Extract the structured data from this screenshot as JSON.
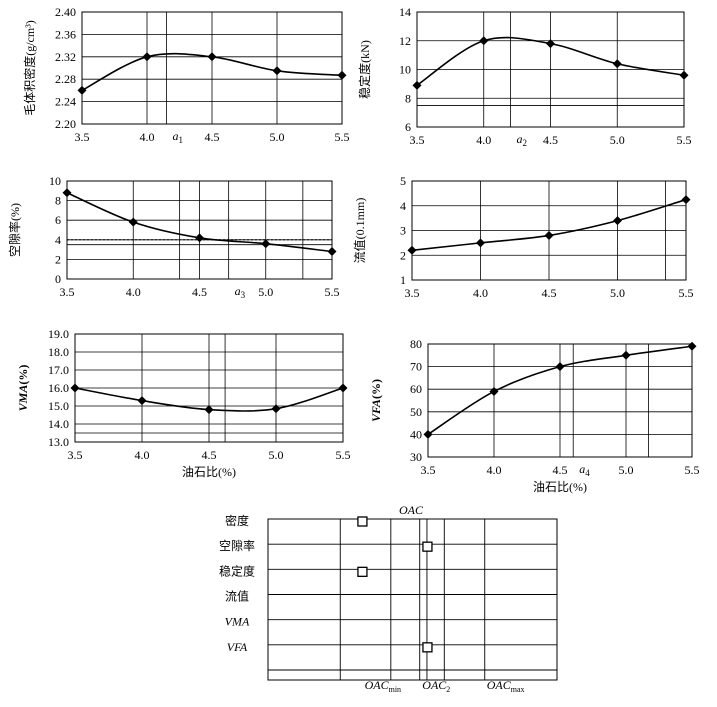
{
  "chart_data": [
    {
      "id": "density",
      "type": "line",
      "x": [
        3.5,
        4.0,
        4.5,
        5.0,
        5.5
      ],
      "values": [
        2.26,
        2.32,
        2.32,
        2.295,
        2.287
      ],
      "xlim": [
        3.5,
        5.5
      ],
      "ylim": [
        2.2,
        2.4
      ],
      "yticks": [
        "2.20",
        "2.24",
        "2.28",
        "2.32",
        "2.36",
        "2.40"
      ],
      "xticks": [
        "3.5",
        "4.0",
        "4.5",
        "5.0",
        "5.5"
      ],
      "ylabel": "毛体积密度(g/cm³)",
      "xlabel": "",
      "marker_label": "a",
      "marker_sub": "1",
      "marker_x": 4.15,
      "extra_vlines": [
        4.15
      ],
      "extra_hlines": [],
      "grid": true
    },
    {
      "id": "stability",
      "type": "line",
      "x": [
        3.5,
        4.0,
        4.5,
        5.0,
        5.5
      ],
      "values": [
        8.9,
        12.0,
        11.8,
        10.4,
        9.6
      ],
      "xlim": [
        3.5,
        5.5
      ],
      "ylim": [
        6,
        14
      ],
      "yticks": [
        "6",
        "8",
        "10",
        "12",
        "14"
      ],
      "xticks": [
        "3.5",
        "4.0",
        "4.5",
        "5.0",
        "5.5"
      ],
      "ylabel": "稳定度(kN)",
      "xlabel": "",
      "marker_label": "a",
      "marker_sub": "2",
      "marker_x": 4.2,
      "extra_vlines": [
        4.2
      ],
      "extra_hlines": [
        7.5
      ],
      "grid": true
    },
    {
      "id": "voids",
      "type": "line",
      "x": [
        3.5,
        4.0,
        4.5,
        5.0,
        5.5
      ],
      "values": [
        8.8,
        5.8,
        4.2,
        3.6,
        2.8
      ],
      "xlim": [
        3.5,
        5.5
      ],
      "ylim": [
        0,
        10
      ],
      "yticks": [
        "0",
        "2",
        "4",
        "6",
        "8",
        "10"
      ],
      "xticks": [
        "3.5",
        "4.0",
        "4.5",
        "5.0",
        "5.5"
      ],
      "ylabel": "空隙率(%)",
      "xlabel": "",
      "marker_label": "a",
      "marker_sub": "3",
      "marker_x": 4.72,
      "extra_vlines": [
        4.35,
        4.72,
        5.28
      ],
      "extra_hlines": [
        3.5
      ],
      "dashed_hlines": [
        4.0
      ],
      "grid": true
    },
    {
      "id": "flow",
      "type": "line",
      "x": [
        3.5,
        4.0,
        4.5,
        5.0,
        5.5
      ],
      "values": [
        2.2,
        2.5,
        2.8,
        3.4,
        4.25
      ],
      "xlim": [
        3.5,
        5.5
      ],
      "ylim": [
        1,
        5
      ],
      "yticks": [
        "1",
        "2",
        "3",
        "4",
        "5"
      ],
      "xticks": [
        "3.5",
        "4.0",
        "4.5",
        "5.0",
        "5.5"
      ],
      "ylabel": "流值(0.1mm)",
      "xlabel": "",
      "marker_label": "",
      "marker_sub": "",
      "marker_x": null,
      "extra_vlines": [
        5.35
      ],
      "extra_hlines": [],
      "grid": true
    },
    {
      "id": "vma",
      "type": "line",
      "x": [
        3.5,
        4.0,
        4.5,
        5.0,
        5.5
      ],
      "values": [
        16.0,
        15.3,
        14.8,
        14.85,
        16.0
      ],
      "xlim": [
        3.5,
        5.5
      ],
      "ylim": [
        13.0,
        19.0
      ],
      "yticks": [
        "13.0",
        "14.0",
        "15.0",
        "16.0",
        "17.0",
        "18.0",
        "19.0"
      ],
      "xticks": [
        "3.5",
        "4.0",
        "4.5",
        "5.0",
        "5.5"
      ],
      "ylabel": "VMA(%)",
      "xlabel": "油石比(%)",
      "marker_label": "",
      "marker_sub": "",
      "marker_x": null,
      "extra_vlines": [
        4.62
      ],
      "extra_hlines": [
        13.5
      ],
      "grid": true
    },
    {
      "id": "vfa",
      "type": "line",
      "x": [
        3.5,
        4.0,
        4.5,
        5.0,
        5.5
      ],
      "values": [
        40,
        59,
        70,
        75,
        79
      ],
      "xlim": [
        3.5,
        5.5
      ],
      "ylim": [
        30,
        80
      ],
      "yticks": [
        "30",
        "40",
        "50",
        "60",
        "70",
        "80"
      ],
      "xticks": [
        "3.5",
        "4.0",
        "4.5",
        "5.0",
        "5.5"
      ],
      "ylabel": "VFA(%)",
      "xlabel": "油石比(%)",
      "marker_label": "a",
      "marker_sub": "4",
      "marker_x": 4.6,
      "extra_vlines": [
        4.6,
        5.17
      ],
      "extra_hlines": [],
      "grid": true
    },
    {
      "id": "oac-range",
      "type": "table",
      "title": "OAC",
      "rows": [
        "密度",
        "空隙率",
        "稳定度",
        "流值",
        "VMA",
        "VFA"
      ],
      "boxes": [
        {
          "row": 0,
          "x": 4.15
        },
        {
          "row": 1,
          "x": 4.6
        },
        {
          "row": 2,
          "x": 4.15
        },
        {
          "row": 5,
          "x": 4.6
        }
      ],
      "xlim": [
        3.5,
        5.5
      ],
      "columns_x": [
        4.0,
        4.35,
        4.55,
        4.6,
        4.72,
        5.0
      ],
      "bottom_labels": [
        {
          "text": "OAC",
          "sub": "min",
          "x": 4.35
        },
        {
          "text": "OAC",
          "sub": "2",
          "x": 4.72
        },
        {
          "text": "OAC",
          "sub": "max",
          "x": 5.2
        }
      ]
    }
  ]
}
